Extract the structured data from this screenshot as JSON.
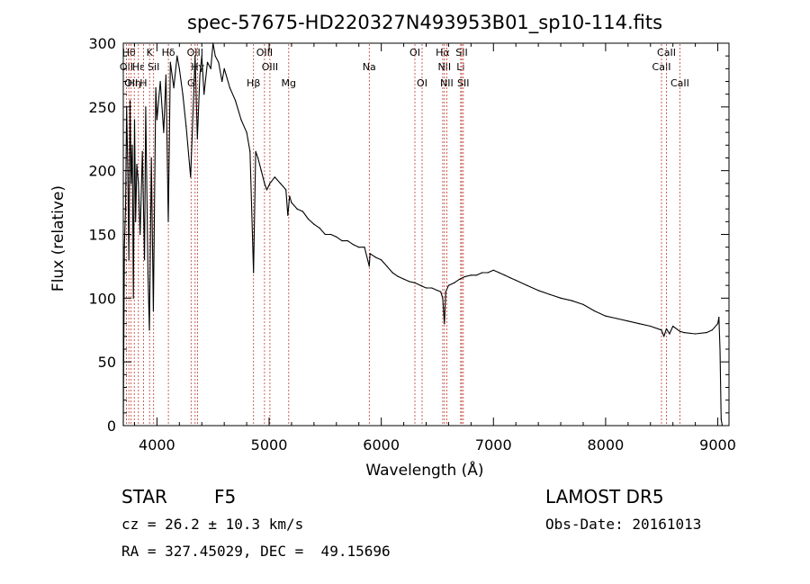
{
  "chart_data": {
    "type": "line",
    "title": "spec-57675-HD220327N493953B01_sp10-114.fits",
    "xlabel": "Wavelength (Å)",
    "ylabel": "Flux (relative)",
    "xlim": [
      3700,
      9100
    ],
    "ylim": [
      0,
      300
    ],
    "xticks": [
      4000,
      5000,
      6000,
      7000,
      8000,
      9000
    ],
    "yticks": [
      0,
      50,
      100,
      150,
      200,
      250,
      300
    ],
    "grid": false,
    "series": [
      {
        "x": [
          3700,
          3710,
          3720,
          3730,
          3740,
          3750,
          3760,
          3770,
          3780,
          3790,
          3800,
          3810,
          3820,
          3835,
          3850,
          3870,
          3889,
          3900,
          3920,
          3933,
          3950,
          3968,
          3990,
          4000,
          4030,
          4060,
          4080,
          4101,
          4120,
          4150,
          4180,
          4200,
          4230,
          4260,
          4300,
          4340,
          4360,
          4383,
          4400,
          4420,
          4450,
          4480,
          4500,
          4520,
          4550,
          4580,
          4600,
          4650,
          4700,
          4750,
          4800,
          4830,
          4861,
          4880,
          4900,
          4930,
          4959,
          4980,
          5007,
          5050,
          5100,
          5150,
          5167,
          5183,
          5200,
          5250,
          5300,
          5350,
          5400,
          5450,
          5500,
          5550,
          5600,
          5650,
          5700,
          5750,
          5800,
          5850,
          5893,
          5900,
          5950,
          6000,
          6050,
          6100,
          6150,
          6200,
          6250,
          6300,
          6350,
          6400,
          6450,
          6500,
          6530,
          6548,
          6563,
          6575,
          6600,
          6650,
          6700,
          6750,
          6800,
          6850,
          6900,
          6950,
          7000,
          7050,
          7100,
          7150,
          7200,
          7300,
          7400,
          7500,
          7600,
          7700,
          7800,
          7900,
          8000,
          8100,
          8200,
          8300,
          8400,
          8498,
          8520,
          8542,
          8570,
          8600,
          8662,
          8700,
          8800,
          8900,
          8950,
          9000,
          9010,
          9020,
          9030,
          9040
        ],
        "y": [
          0,
          140,
          170,
          250,
          200,
          130,
          255,
          190,
          220,
          100,
          240,
          160,
          205,
          190,
          150,
          215,
          130,
          250,
          120,
          75,
          210,
          90,
          265,
          240,
          270,
          230,
          275,
          160,
          285,
          265,
          290,
          280,
          260,
          235,
          195,
          290,
          225,
          275,
          290,
          260,
          285,
          280,
          300,
          290,
          285,
          270,
          280,
          265,
          255,
          240,
          230,
          215,
          120,
          215,
          210,
          200,
          190,
          185,
          190,
          195,
          190,
          185,
          165,
          180,
          175,
          170,
          168,
          162,
          158,
          155,
          150,
          150,
          148,
          145,
          145,
          142,
          140,
          140,
          125,
          135,
          132,
          130,
          125,
          120,
          117,
          115,
          113,
          112,
          110,
          108,
          108,
          106,
          105,
          100,
          80,
          105,
          110,
          112,
          115,
          117,
          118,
          118,
          120,
          120,
          122,
          120,
          118,
          116,
          114,
          110,
          106,
          103,
          100,
          98,
          95,
          90,
          86,
          84,
          82,
          80,
          78,
          75,
          70,
          76,
          72,
          78,
          74,
          73,
          72,
          73,
          75,
          80,
          85,
          60,
          5,
          0
        ]
      }
    ],
    "lines": [
      {
        "wl": 3727,
        "label": "OII",
        "row": 2
      },
      {
        "wl": 3750,
        "label": "Hθ",
        "row": 1
      },
      {
        "wl": 3770,
        "label": "OII",
        "row": 3
      },
      {
        "wl": 3798,
        "label": "Hη",
        "row": 3
      },
      {
        "wl": 3835,
        "label": "Hε",
        "row": 2
      },
      {
        "wl": 3880,
        "label": "H",
        "row": 3
      },
      {
        "wl": 3934,
        "label": "K",
        "row": 1
      },
      {
        "wl": 3970,
        "label": "SiI",
        "row": 2
      },
      {
        "wl": 4102,
        "label": "Hδ",
        "row": 1
      },
      {
        "wl": 4304,
        "label": "G",
        "row": 3
      },
      {
        "wl": 4340,
        "label": "OIII",
        "row": 1
      },
      {
        "wl": 4363,
        "label": "Hγ",
        "row": 2
      },
      {
        "wl": 4861,
        "label": "Hβ",
        "row": 3
      },
      {
        "wl": 4959,
        "label": "OIII",
        "row": 1
      },
      {
        "wl": 5007,
        "label": "OIII",
        "row": 2
      },
      {
        "wl": 5175,
        "label": "Mg",
        "row": 3
      },
      {
        "wl": 5893,
        "label": "Na",
        "row": 2
      },
      {
        "wl": 6300,
        "label": "OI",
        "row": 1
      },
      {
        "wl": 6364,
        "label": "OI",
        "row": 3
      },
      {
        "wl": 6548,
        "label": "Hα",
        "row": 1
      },
      {
        "wl": 6563,
        "label": "NII",
        "row": 2
      },
      {
        "wl": 6584,
        "label": "NII",
        "row": 3
      },
      {
        "wl": 6708,
        "label": "Li",
        "row": 2
      },
      {
        "wl": 6717,
        "label": "SII",
        "row": 1
      },
      {
        "wl": 6731,
        "label": "SII",
        "row": 3
      },
      {
        "wl": 8498,
        "label": "CaII",
        "row": 2
      },
      {
        "wl": 8542,
        "label": "CaII",
        "row": 1
      },
      {
        "wl": 8662,
        "label": "CaII",
        "row": 3
      }
    ]
  },
  "info": {
    "class": "STAR",
    "subclass": "F5",
    "survey": "LAMOST DR5",
    "cz": "cz = 26.2 ± 10.3 km/s",
    "obs_date": "Obs-Date: 20161013",
    "radec": "RA = 327.45029, DEC =  49.15696"
  }
}
